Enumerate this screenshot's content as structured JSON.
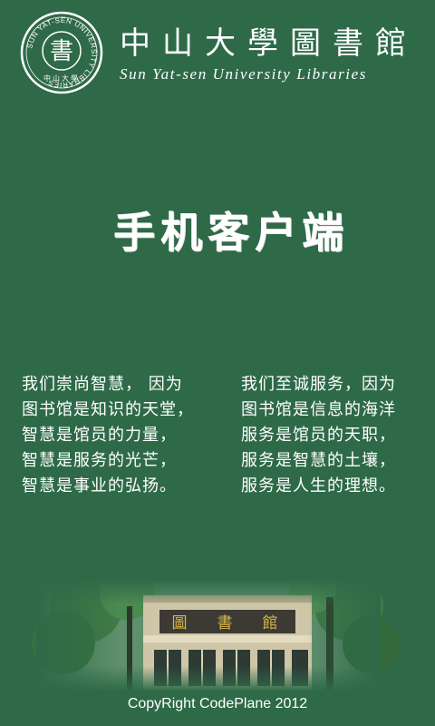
{
  "header": {
    "seal": {
      "ring_text": "SUN YAT-SEN UNIVERSITY LIBRARIES",
      "center_char": "書",
      "bottom_text": "中山大學"
    },
    "title_cn": "中山大學圖書館",
    "title_en": "Sun Yat-sen University Libraries"
  },
  "main": {
    "title": "手机客户端"
  },
  "quotes": {
    "left": [
      "我们崇尚智慧， 因为",
      "图书馆是知识的天堂，",
      "智慧是馆员的力量，",
      "智慧是服务的光芒，",
      "智慧是事业的弘扬。"
    ],
    "right": [
      "我们至诚服务，因为",
      "图书馆是信息的海洋",
      "服务是馆员的天职，",
      "服务是智慧的土壤，",
      "服务是人生的理想。"
    ]
  },
  "photo": {
    "building_sign": [
      "圖",
      "書",
      "館"
    ]
  },
  "footer": {
    "copyright": "CopyRight CodePlane 2012"
  },
  "colors": {
    "background": "#2e6a48",
    "text": "#ffffff"
  }
}
